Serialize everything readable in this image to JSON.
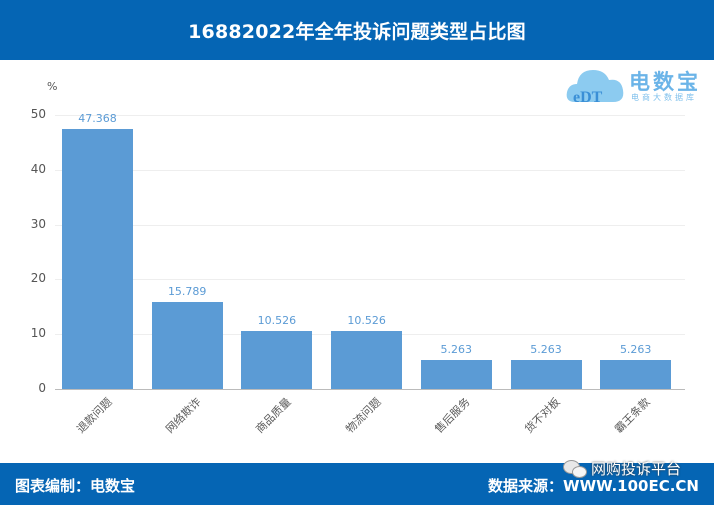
{
  "header": {
    "title": "16882022年全年投诉问题类型占比图"
  },
  "logo": {
    "brand": "电数宝",
    "subtitle": "电商大数据库",
    "mark": "eDT"
  },
  "footer": {
    "left": "图表编制：电数宝",
    "right": "数据来源：WWW.100EC.CN",
    "watermark": "网购投诉平台"
  },
  "colors": {
    "header_bg": "#0565B4",
    "bar": "#5B9BD5",
    "label": "#5B9BD5"
  },
  "chart_data": {
    "type": "bar",
    "title": "16882022年全年投诉问题类型占比图",
    "xlabel": "",
    "ylabel": "%",
    "ylim": [
      0,
      50
    ],
    "yticks": [
      0,
      10,
      20,
      30,
      40,
      50
    ],
    "grid": true,
    "legend": "none",
    "categories": [
      "退款问题",
      "网络欺诈",
      "商品质量",
      "物流问题",
      "售后服务",
      "货不对板",
      "霸王条款"
    ],
    "values": [
      47.368,
      15.789,
      10.526,
      10.526,
      5.263,
      5.263,
      5.263
    ],
    "value_labels": [
      "47.368",
      "15.789",
      "10.526",
      "10.526",
      "5.263",
      "5.263",
      "5.263"
    ]
  }
}
